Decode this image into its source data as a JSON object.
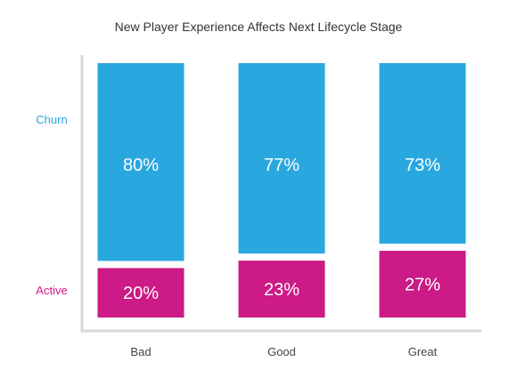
{
  "chart_data": {
    "type": "bar",
    "stacked": true,
    "normalized": true,
    "title": "New Player Experience Affects Next Lifecycle Stage",
    "xlabel": "",
    "ylabel": "",
    "ylim": [
      0,
      100
    ],
    "categories": [
      "Bad",
      "Good",
      "Great"
    ],
    "series": [
      {
        "name": "Active",
        "values": [
          20,
          23,
          27
        ],
        "labels": [
          "20%",
          "23%",
          "27%"
        ],
        "color": "#cc1a86"
      },
      {
        "name": "Churn",
        "values": [
          80,
          77,
          73
        ],
        "labels": [
          "80%",
          "77%",
          "73%"
        ],
        "color": "#29a8e0"
      }
    ],
    "colors": {
      "axis": "#d9d9d9",
      "value_text": "#ffffff"
    }
  }
}
